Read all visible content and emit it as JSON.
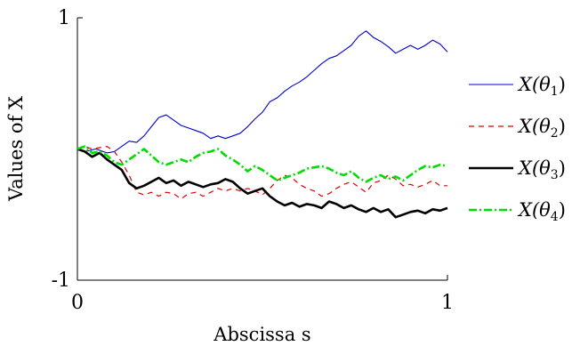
{
  "chart_data": {
    "type": "line",
    "xlabel": "Abscissa s",
    "ylabel": "Values of X",
    "xlim": [
      0,
      1
    ],
    "ylim": [
      -1,
      1
    ],
    "xticks": [
      {
        "value": 0,
        "label": "0"
      },
      {
        "value": 1,
        "label": "1"
      }
    ],
    "yticks": [
      {
        "value": -1,
        "label": "-1"
      },
      {
        "value": 1,
        "label": "1"
      }
    ],
    "grid": false,
    "legend_position": "right",
    "series": [
      {
        "name": "X(θ1)",
        "color": "#0000cc",
        "dash": "solid",
        "points": [
          [
            0,
            0.0
          ],
          [
            0.02,
            -0.02
          ],
          [
            0.05,
            0.0
          ],
          [
            0.08,
            -0.03
          ],
          [
            0.1,
            -0.02
          ],
          [
            0.12,
            0.02
          ],
          [
            0.14,
            0.06
          ],
          [
            0.16,
            0.05
          ],
          [
            0.18,
            0.1
          ],
          [
            0.2,
            0.17
          ],
          [
            0.22,
            0.24
          ],
          [
            0.24,
            0.26
          ],
          [
            0.26,
            0.22
          ],
          [
            0.28,
            0.18
          ],
          [
            0.3,
            0.16
          ],
          [
            0.32,
            0.14
          ],
          [
            0.34,
            0.12
          ],
          [
            0.36,
            0.08
          ],
          [
            0.38,
            0.1
          ],
          [
            0.4,
            0.08
          ],
          [
            0.42,
            0.1
          ],
          [
            0.44,
            0.12
          ],
          [
            0.46,
            0.17
          ],
          [
            0.48,
            0.23
          ],
          [
            0.5,
            0.28
          ],
          [
            0.52,
            0.36
          ],
          [
            0.54,
            0.39
          ],
          [
            0.56,
            0.44
          ],
          [
            0.58,
            0.48
          ],
          [
            0.6,
            0.51
          ],
          [
            0.62,
            0.55
          ],
          [
            0.64,
            0.6
          ],
          [
            0.66,
            0.65
          ],
          [
            0.68,
            0.69
          ],
          [
            0.7,
            0.71
          ],
          [
            0.72,
            0.75
          ],
          [
            0.74,
            0.79
          ],
          [
            0.76,
            0.86
          ],
          [
            0.78,
            0.9
          ],
          [
            0.8,
            0.85
          ],
          [
            0.82,
            0.82
          ],
          [
            0.84,
            0.78
          ],
          [
            0.86,
            0.73
          ],
          [
            0.88,
            0.76
          ],
          [
            0.9,
            0.79
          ],
          [
            0.92,
            0.76
          ],
          [
            0.94,
            0.79
          ],
          [
            0.96,
            0.83
          ],
          [
            0.98,
            0.8
          ],
          [
            1.0,
            0.74
          ]
        ]
      },
      {
        "name": "X(θ2)",
        "color": "#dd0000",
        "dash": "6,5",
        "points": [
          [
            0,
            0.0
          ],
          [
            0.02,
            0.02
          ],
          [
            0.04,
            0.0
          ],
          [
            0.06,
            0.01
          ],
          [
            0.08,
            0.02
          ],
          [
            0.1,
            -0.02
          ],
          [
            0.12,
            -0.1
          ],
          [
            0.14,
            -0.2
          ],
          [
            0.16,
            -0.33
          ],
          [
            0.18,
            -0.35
          ],
          [
            0.2,
            -0.33
          ],
          [
            0.22,
            -0.36
          ],
          [
            0.24,
            -0.33
          ],
          [
            0.26,
            -0.34
          ],
          [
            0.28,
            -0.38
          ],
          [
            0.3,
            -0.34
          ],
          [
            0.32,
            -0.33
          ],
          [
            0.34,
            -0.36
          ],
          [
            0.36,
            -0.33
          ],
          [
            0.38,
            -0.3
          ],
          [
            0.4,
            -0.32
          ],
          [
            0.42,
            -0.3
          ],
          [
            0.44,
            -0.32
          ],
          [
            0.46,
            -0.3
          ],
          [
            0.48,
            -0.32
          ],
          [
            0.5,
            -0.35
          ],
          [
            0.52,
            -0.3
          ],
          [
            0.54,
            -0.24
          ],
          [
            0.56,
            -0.2
          ],
          [
            0.58,
            -0.22
          ],
          [
            0.6,
            -0.27
          ],
          [
            0.62,
            -0.3
          ],
          [
            0.64,
            -0.32
          ],
          [
            0.66,
            -0.36
          ],
          [
            0.68,
            -0.34
          ],
          [
            0.7,
            -0.3
          ],
          [
            0.72,
            -0.27
          ],
          [
            0.74,
            -0.25
          ],
          [
            0.76,
            -0.29
          ],
          [
            0.78,
            -0.33
          ],
          [
            0.8,
            -0.26
          ],
          [
            0.82,
            -0.24
          ],
          [
            0.84,
            -0.2
          ],
          [
            0.86,
            -0.23
          ],
          [
            0.88,
            -0.28
          ],
          [
            0.9,
            -0.27
          ],
          [
            0.92,
            -0.29
          ],
          [
            0.94,
            -0.27
          ],
          [
            0.96,
            -0.24
          ],
          [
            0.98,
            -0.28
          ],
          [
            1.0,
            -0.28
          ]
        ]
      },
      {
        "name": "X(θ3)",
        "color": "#000000",
        "dash": "solid",
        "points": [
          [
            0,
            0.0
          ],
          [
            0.02,
            -0.02
          ],
          [
            0.04,
            -0.06
          ],
          [
            0.06,
            -0.03
          ],
          [
            0.08,
            -0.08
          ],
          [
            0.1,
            -0.12
          ],
          [
            0.12,
            -0.16
          ],
          [
            0.14,
            -0.26
          ],
          [
            0.16,
            -0.3
          ],
          [
            0.18,
            -0.28
          ],
          [
            0.2,
            -0.25
          ],
          [
            0.22,
            -0.22
          ],
          [
            0.24,
            -0.26
          ],
          [
            0.26,
            -0.24
          ],
          [
            0.28,
            -0.28
          ],
          [
            0.3,
            -0.25
          ],
          [
            0.32,
            -0.27
          ],
          [
            0.34,
            -0.29
          ],
          [
            0.36,
            -0.27
          ],
          [
            0.38,
            -0.26
          ],
          [
            0.4,
            -0.23
          ],
          [
            0.42,
            -0.25
          ],
          [
            0.44,
            -0.3
          ],
          [
            0.46,
            -0.34
          ],
          [
            0.48,
            -0.32
          ],
          [
            0.5,
            -0.3
          ],
          [
            0.52,
            -0.36
          ],
          [
            0.54,
            -0.4
          ],
          [
            0.56,
            -0.43
          ],
          [
            0.58,
            -0.41
          ],
          [
            0.6,
            -0.44
          ],
          [
            0.62,
            -0.42
          ],
          [
            0.64,
            -0.43
          ],
          [
            0.66,
            -0.45
          ],
          [
            0.68,
            -0.4
          ],
          [
            0.7,
            -0.42
          ],
          [
            0.72,
            -0.45
          ],
          [
            0.74,
            -0.43
          ],
          [
            0.76,
            -0.46
          ],
          [
            0.78,
            -0.48
          ],
          [
            0.8,
            -0.45
          ],
          [
            0.82,
            -0.48
          ],
          [
            0.84,
            -0.46
          ],
          [
            0.86,
            -0.52
          ],
          [
            0.88,
            -0.5
          ],
          [
            0.9,
            -0.48
          ],
          [
            0.92,
            -0.47
          ],
          [
            0.94,
            -0.49
          ],
          [
            0.96,
            -0.46
          ],
          [
            0.98,
            -0.47
          ],
          [
            1.0,
            -0.45
          ]
        ]
      },
      {
        "name": "X(θ4)",
        "color": "#00dd00",
        "dash": "9,3,2,3",
        "points": [
          [
            0,
            0.0
          ],
          [
            0.02,
            0.02
          ],
          [
            0.04,
            -0.03
          ],
          [
            0.06,
            -0.02
          ],
          [
            0.08,
            -0.05
          ],
          [
            0.1,
            -0.1
          ],
          [
            0.12,
            -0.12
          ],
          [
            0.14,
            -0.08
          ],
          [
            0.16,
            -0.04
          ],
          [
            0.18,
            0.0
          ],
          [
            0.2,
            -0.05
          ],
          [
            0.22,
            -0.1
          ],
          [
            0.24,
            -0.12
          ],
          [
            0.26,
            -0.1
          ],
          [
            0.28,
            -0.08
          ],
          [
            0.3,
            -0.1
          ],
          [
            0.32,
            -0.06
          ],
          [
            0.34,
            -0.03
          ],
          [
            0.36,
            -0.02
          ],
          [
            0.38,
            0.0
          ],
          [
            0.4,
            -0.05
          ],
          [
            0.42,
            -0.08
          ],
          [
            0.44,
            -0.12
          ],
          [
            0.46,
            -0.17
          ],
          [
            0.48,
            -0.13
          ],
          [
            0.5,
            -0.16
          ],
          [
            0.52,
            -0.2
          ],
          [
            0.54,
            -0.24
          ],
          [
            0.56,
            -0.22
          ],
          [
            0.58,
            -0.2
          ],
          [
            0.6,
            -0.18
          ],
          [
            0.62,
            -0.15
          ],
          [
            0.64,
            -0.14
          ],
          [
            0.66,
            -0.13
          ],
          [
            0.68,
            -0.15
          ],
          [
            0.7,
            -0.18
          ],
          [
            0.72,
            -0.2
          ],
          [
            0.74,
            -0.17
          ],
          [
            0.76,
            -0.22
          ],
          [
            0.78,
            -0.25
          ],
          [
            0.8,
            -0.22
          ],
          [
            0.82,
            -0.2
          ],
          [
            0.84,
            -0.23
          ],
          [
            0.86,
            -0.21
          ],
          [
            0.88,
            -0.24
          ],
          [
            0.9,
            -0.2
          ],
          [
            0.92,
            -0.16
          ],
          [
            0.94,
            -0.13
          ],
          [
            0.96,
            -0.14
          ],
          [
            0.98,
            -0.12
          ],
          [
            1.0,
            -0.13
          ]
        ]
      }
    ]
  }
}
